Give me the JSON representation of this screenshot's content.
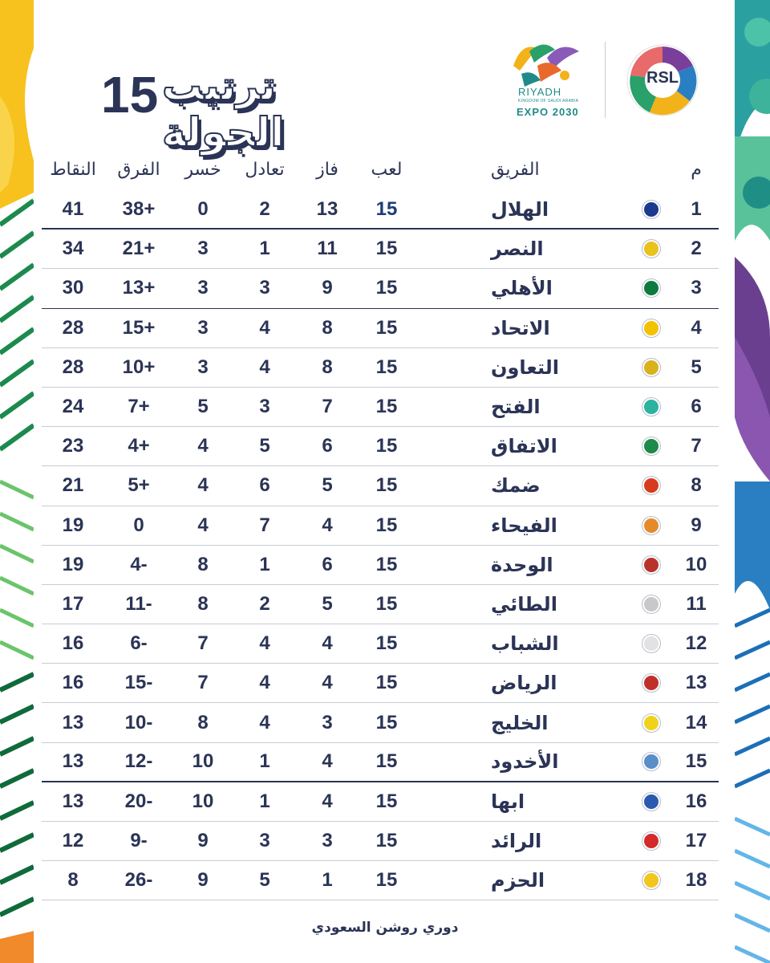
{
  "title": "ترتيب الجولة",
  "round_number": "15",
  "logos": {
    "expo_city": "RIYADH",
    "expo_kingdom": "KINGDOM OF SAUDI ARABIA",
    "expo_year": "EXPO 2030",
    "league": "RSL"
  },
  "headers": {
    "position": "م",
    "team": "الفريق",
    "played": "لعب",
    "won": "فاز",
    "drawn": "تعادل",
    "lost": "خسر",
    "goal_diff": "الفرق",
    "points": "النقاط"
  },
  "rows": [
    {
      "pos": "1",
      "team": "الهلال",
      "played": "15",
      "won": "13",
      "drawn": "2",
      "lost": "0",
      "gd": "38+",
      "pts": "41",
      "color": "#1a3a8f"
    },
    {
      "pos": "2",
      "team": "النصر",
      "played": "15",
      "won": "11",
      "drawn": "1",
      "lost": "3",
      "gd": "21+",
      "pts": "34",
      "color": "#e9c21d"
    },
    {
      "pos": "3",
      "team": "الأهلي",
      "played": "15",
      "won": "9",
      "drawn": "3",
      "lost": "3",
      "gd": "13+",
      "pts": "30",
      "color": "#0f7a3d"
    },
    {
      "pos": "4",
      "team": "الاتحاد",
      "played": "15",
      "won": "8",
      "drawn": "4",
      "lost": "3",
      "gd": "15+",
      "pts": "28",
      "color": "#f2c200"
    },
    {
      "pos": "5",
      "team": "التعاون",
      "played": "15",
      "won": "8",
      "drawn": "4",
      "lost": "3",
      "gd": "10+",
      "pts": "28",
      "color": "#d8b21a"
    },
    {
      "pos": "6",
      "team": "الفتح",
      "played": "15",
      "won": "7",
      "drawn": "3",
      "lost": "5",
      "gd": "7+",
      "pts": "24",
      "color": "#2bb3a0"
    },
    {
      "pos": "7",
      "team": "الاتفاق",
      "played": "15",
      "won": "6",
      "drawn": "5",
      "lost": "4",
      "gd": "4+",
      "pts": "23",
      "color": "#1d8a4a"
    },
    {
      "pos": "8",
      "team": "ضمك",
      "played": "15",
      "won": "5",
      "drawn": "6",
      "lost": "4",
      "gd": "5+",
      "pts": "21",
      "color": "#d83a1e"
    },
    {
      "pos": "9",
      "team": "الفيحاء",
      "played": "15",
      "won": "4",
      "drawn": "7",
      "lost": "4",
      "gd": "0",
      "pts": "19",
      "color": "#e58a2a"
    },
    {
      "pos": "10",
      "team": "الوحدة",
      "played": "15",
      "won": "6",
      "drawn": "1",
      "lost": "8",
      "gd": "4-",
      "pts": "19",
      "color": "#b8342a"
    },
    {
      "pos": "11",
      "team": "الطائي",
      "played": "15",
      "won": "5",
      "drawn": "2",
      "lost": "8",
      "gd": "11-",
      "pts": "17",
      "color": "#c8c8c8"
    },
    {
      "pos": "12",
      "team": "الشباب",
      "played": "15",
      "won": "4",
      "drawn": "4",
      "lost": "7",
      "gd": "6-",
      "pts": "16",
      "color": "#e2e2e2"
    },
    {
      "pos": "13",
      "team": "الرياض",
      "played": "15",
      "won": "4",
      "drawn": "4",
      "lost": "7",
      "gd": "15-",
      "pts": "16",
      "color": "#c0302a"
    },
    {
      "pos": "14",
      "team": "الخليج",
      "played": "15",
      "won": "3",
      "drawn": "4",
      "lost": "8",
      "gd": "10-",
      "pts": "13",
      "color": "#f0d21a"
    },
    {
      "pos": "15",
      "team": "الأخدود",
      "played": "15",
      "won": "4",
      "drawn": "1",
      "lost": "10",
      "gd": "12-",
      "pts": "13",
      "color": "#5a8ec8"
    },
    {
      "pos": "16",
      "team": "ابها",
      "played": "15",
      "won": "4",
      "drawn": "1",
      "lost": "10",
      "gd": "20-",
      "pts": "13",
      "color": "#2a5ab0"
    },
    {
      "pos": "17",
      "team": "الرائد",
      "played": "15",
      "won": "3",
      "drawn": "3",
      "lost": "9",
      "gd": "9-",
      "pts": "12",
      "color": "#d42a2a"
    },
    {
      "pos": "18",
      "team": "الحزم",
      "played": "15",
      "won": "1",
      "drawn": "5",
      "lost": "9",
      "gd": "26-",
      "pts": "8",
      "color": "#f2c61a"
    }
  ],
  "footer": "دوري روشن السعودي"
}
